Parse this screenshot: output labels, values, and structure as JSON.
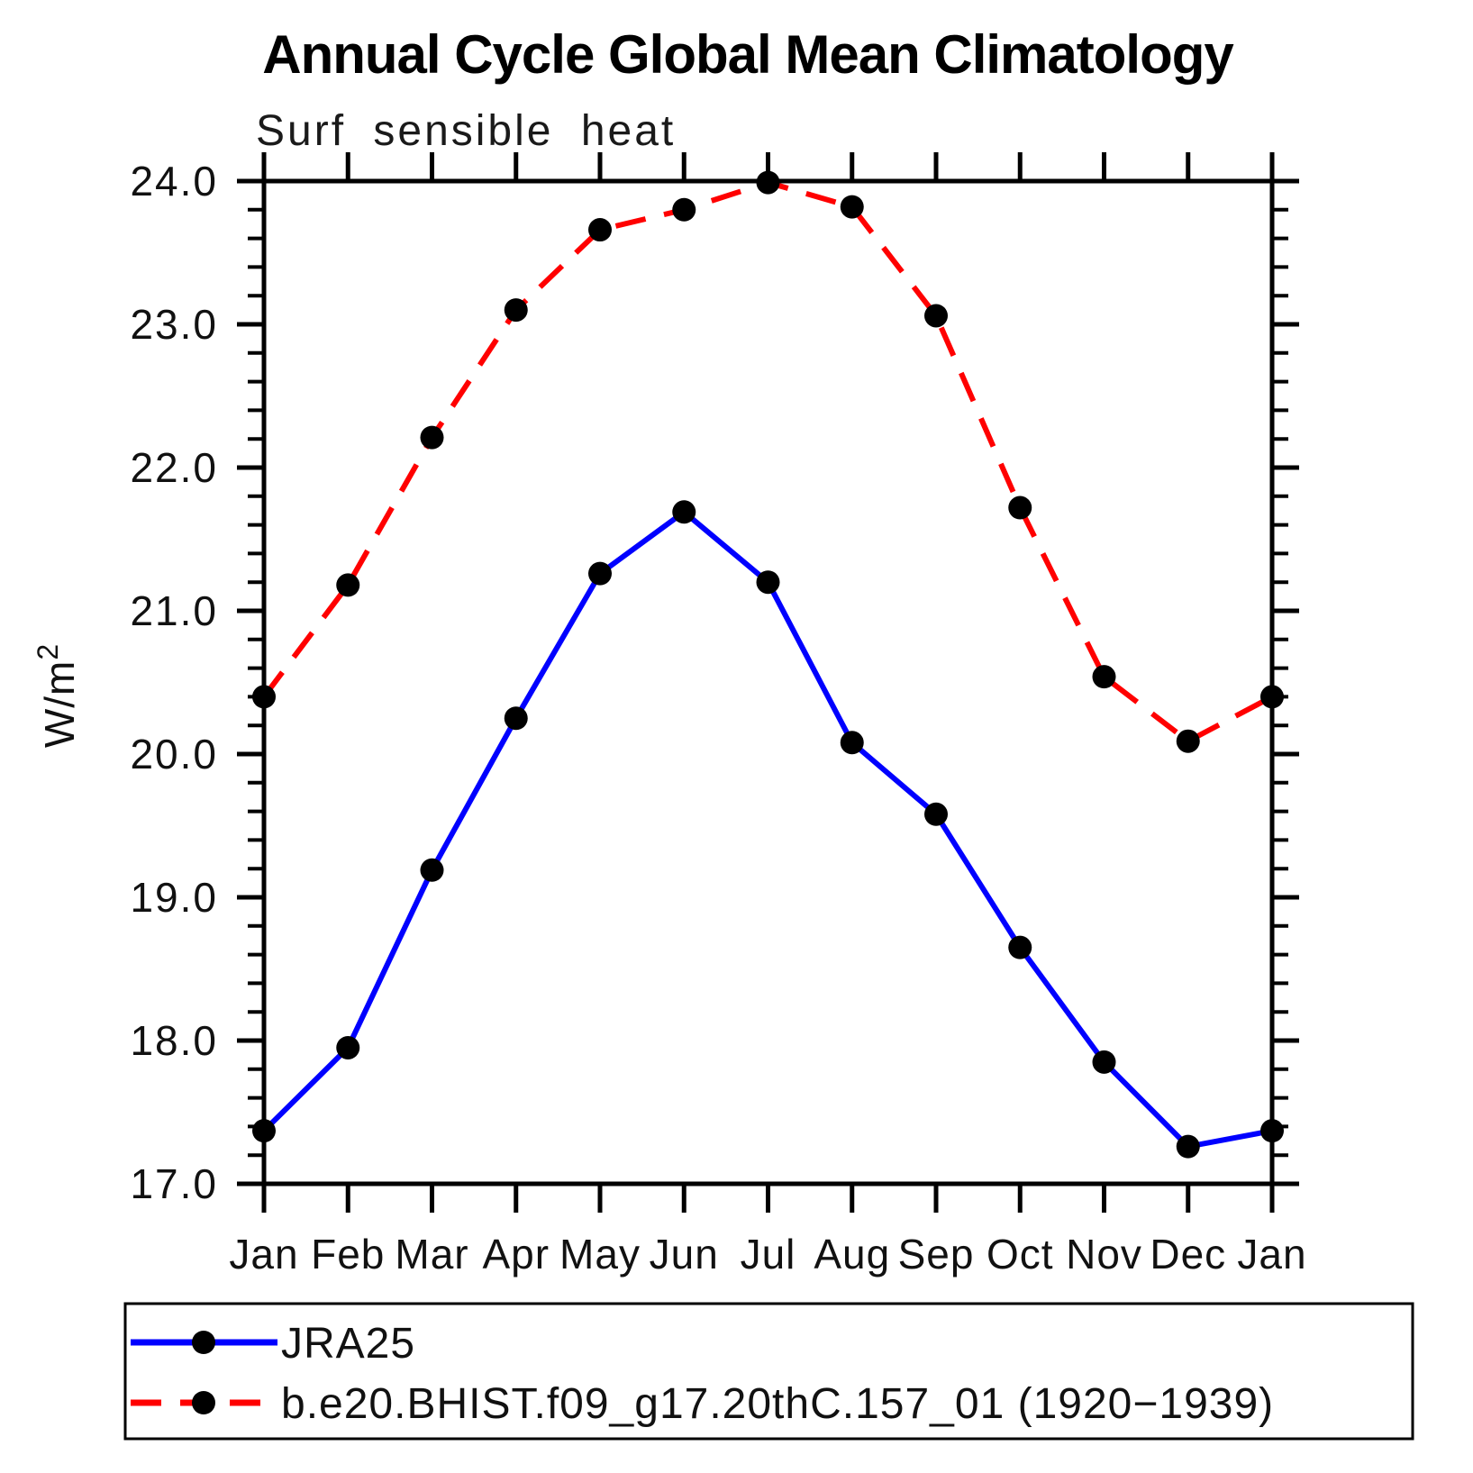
{
  "page": {
    "background": "#ffffff"
  },
  "chart_data": {
    "type": "line",
    "title": "Annual Cycle Global Mean Climatology",
    "subtitle": "Surf sensible heat",
    "ylabel_base": "W/m",
    "ylabel_sup": "2",
    "categories": [
      "Jan",
      "Feb",
      "Mar",
      "Apr",
      "May",
      "Jun",
      "Jul",
      "Aug",
      "Sep",
      "Oct",
      "Nov",
      "Dec",
      "Jan"
    ],
    "ylim": [
      17.0,
      24.0
    ],
    "ytick_step": 1.0,
    "yminor_step": 0.2,
    "ytick_decimals": 1,
    "grid": false,
    "legend_position": "bottom",
    "frame_color": "#000000",
    "marker_color": "#000000",
    "series": [
      {
        "name": "JRA25",
        "color": "#0000ff",
        "style": "solid",
        "marker": "circle",
        "values": [
          17.37,
          17.95,
          19.19,
          20.25,
          21.26,
          21.69,
          21.2,
          20.08,
          19.58,
          18.65,
          17.85,
          17.26,
          17.37
        ]
      },
      {
        "name": "b.e20.BHIST.f09_g17.20thC.157_01 (1920−1939)",
        "color": "#ff0000",
        "style": "dashed",
        "marker": "circle",
        "values": [
          20.4,
          21.18,
          22.21,
          23.1,
          23.66,
          23.8,
          23.99,
          23.82,
          23.06,
          21.72,
          20.54,
          20.09,
          20.4
        ]
      }
    ]
  }
}
